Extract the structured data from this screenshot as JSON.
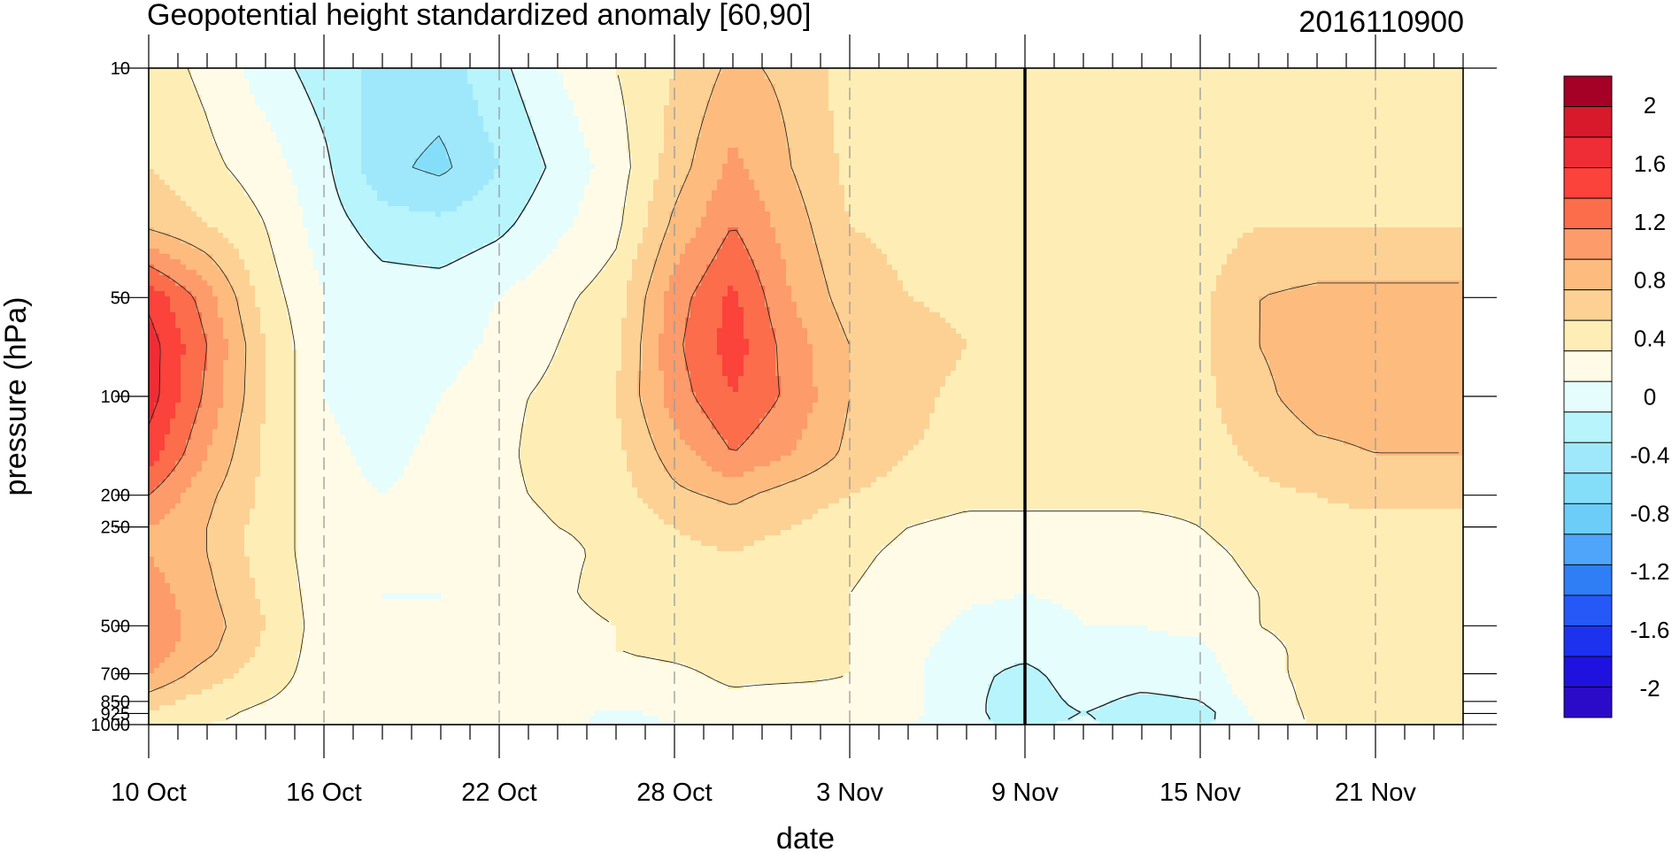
{
  "chart_data": {
    "type": "heatmap",
    "title": "Geopotential height standardized anomaly [60,90]",
    "right_title": "2016110900",
    "xlabel": "date",
    "ylabel": "pressure (hPa)",
    "y_scale": "log",
    "y_reversed": true,
    "ylim": [
      1000,
      10
    ],
    "x_start": "2016-10-10",
    "x_end": "2016-11-24",
    "x_tick_labels": [
      "10 Oct",
      "16 Oct",
      "22 Oct",
      "28 Oct",
      "3 Nov",
      "9 Nov",
      "15 Nov",
      "21 Nov"
    ],
    "x_tick_dates": [
      "2016-10-10",
      "2016-10-16",
      "2016-10-22",
      "2016-10-28",
      "2016-11-03",
      "2016-11-09",
      "2016-11-15",
      "2016-11-21"
    ],
    "y_tick_labels": [
      "10",
      "50",
      "100",
      "200",
      "250",
      "500",
      "700",
      "850",
      "925",
      "1000"
    ],
    "y_tick_values": [
      10,
      50,
      100,
      200,
      250,
      500,
      700,
      850,
      925,
      1000
    ],
    "highlight_date": "2016-11-09",
    "colorbar": {
      "labels": [
        "2",
        "1.6",
        "1.2",
        "0.8",
        "0.4",
        "0",
        "-0.4",
        "-0.8",
        "-1.2",
        "-1.6",
        "-2"
      ],
      "label_values": [
        2,
        1.6,
        1.2,
        0.8,
        0.4,
        0,
        -0.4,
        -0.8,
        -1.2,
        -1.6,
        -2
      ],
      "levels": [
        2.2,
        2.0,
        1.8,
        1.6,
        1.4,
        1.2,
        1.0,
        0.8,
        0.6,
        0.4,
        0.2,
        0,
        -0.2,
        -0.4,
        -0.6,
        -0.8,
        -1.0,
        -1.2,
        -1.4,
        -1.6,
        -1.8,
        -2.0,
        -2.2
      ],
      "colors": [
        "#a50026",
        "#d7192b",
        "#ee2d36",
        "#fb423b",
        "#fb6d4b",
        "#fd9b6b",
        "#fdbb7e",
        "#fdd194",
        "#feeeb5",
        "#fffbe6",
        "#e6fdfe",
        "#b7f4fc",
        "#9fe8fb",
        "#85def9",
        "#6bcdf8",
        "#4ea5fa",
        "#2f7ef6",
        "#2558f7",
        "#1d32ef",
        "#1f12de",
        "#2c0bc8"
      ]
    },
    "dates": [
      "2016-10-10",
      "2016-10-12",
      "2016-10-14",
      "2016-10-16",
      "2016-10-18",
      "2016-10-20",
      "2016-10-22",
      "2016-10-24",
      "2016-10-26",
      "2016-10-28",
      "2016-10-30",
      "2016-11-01",
      "2016-11-03",
      "2016-11-05",
      "2016-11-07",
      "2016-11-09",
      "2016-11-11",
      "2016-11-13",
      "2016-11-15",
      "2016-11-17",
      "2016-11-19",
      "2016-11-21",
      "2016-11-23"
    ],
    "pressure_levels": [
      10,
      20,
      30,
      50,
      70,
      100,
      150,
      200,
      250,
      300,
      400,
      500,
      600,
      700,
      850,
      925,
      1000
    ],
    "values": [
      [
        0.5,
        0.35,
        0.1,
        -0.1,
        -0.25,
        -0.3,
        -0.05,
        0.2,
        0.4,
        0.6,
        0.85,
        0.75,
        0.5,
        0.5,
        0.5,
        0.5,
        0.5,
        0.5,
        0.5,
        0.5,
        0.5,
        0.5,
        0.5
      ],
      [
        0.6,
        0.45,
        0.3,
        0.05,
        -0.35,
        -0.45,
        -0.2,
        0.05,
        0.3,
        0.7,
        1.05,
        0.8,
        0.55,
        0.5,
        0.45,
        0.45,
        0.4,
        0.4,
        0.45,
        0.5,
        0.5,
        0.5,
        0.5
      ],
      [
        0.75,
        0.6,
        0.4,
        0.1,
        -0.1,
        -0.15,
        -0.05,
        0.15,
        0.35,
        0.85,
        1.2,
        0.9,
        0.6,
        0.55,
        0.5,
        0.45,
        0.45,
        0.45,
        0.5,
        0.6,
        0.6,
        0.6,
        0.6
      ],
      [
        1.55,
        1.1,
        0.5,
        0.2,
        0.1,
        0.1,
        0.2,
        0.35,
        0.5,
        1.1,
        1.45,
        1.0,
        0.7,
        0.6,
        0.55,
        0.5,
        0.55,
        0.55,
        0.55,
        0.8,
        0.85,
        0.85,
        0.85
      ],
      [
        1.7,
        1.2,
        0.6,
        0.2,
        0.15,
        0.1,
        0.25,
        0.4,
        0.55,
        1.15,
        1.5,
        1.1,
        0.8,
        0.7,
        0.6,
        0.55,
        0.6,
        0.55,
        0.55,
        0.8,
        0.9,
        0.9,
        0.9
      ],
      [
        1.7,
        1.15,
        0.6,
        0.2,
        0.1,
        0.2,
        0.35,
        0.45,
        0.6,
        1.1,
        1.4,
        1.15,
        0.8,
        0.65,
        0.55,
        0.55,
        0.5,
        0.55,
        0.55,
        0.75,
        0.9,
        0.9,
        0.9
      ],
      [
        1.5,
        1.0,
        0.55,
        0.25,
        0.15,
        0.25,
        0.35,
        0.5,
        0.55,
        0.9,
        1.2,
        1.0,
        0.75,
        0.6,
        0.55,
        0.5,
        0.5,
        0.45,
        0.5,
        0.65,
        0.75,
        0.8,
        0.8
      ],
      [
        1.2,
        0.85,
        0.55,
        0.25,
        0.2,
        0.25,
        0.35,
        0.45,
        0.5,
        0.75,
        0.85,
        0.7,
        0.6,
        0.5,
        0.45,
        0.45,
        0.45,
        0.45,
        0.45,
        0.55,
        0.6,
        0.65,
        0.65
      ],
      [
        1.0,
        0.8,
        0.5,
        0.3,
        0.2,
        0.25,
        0.3,
        0.4,
        0.45,
        0.6,
        0.7,
        0.6,
        0.5,
        0.4,
        0.35,
        0.35,
        0.35,
        0.35,
        0.4,
        0.5,
        0.55,
        0.55,
        0.55
      ],
      [
        1.0,
        0.8,
        0.5,
        0.3,
        0.2,
        0.2,
        0.3,
        0.35,
        0.45,
        0.55,
        0.6,
        0.5,
        0.45,
        0.35,
        0.3,
        0.25,
        0.3,
        0.3,
        0.35,
        0.45,
        0.5,
        0.5,
        0.5
      ],
      [
        1.1,
        0.85,
        0.55,
        0.3,
        0.2,
        0.2,
        0.25,
        0.35,
        0.5,
        0.55,
        0.6,
        0.5,
        0.4,
        0.3,
        0.25,
        0.2,
        0.25,
        0.25,
        0.3,
        0.4,
        0.45,
        0.45,
        0.45
      ],
      [
        1.15,
        0.9,
        0.6,
        0.3,
        0.2,
        0.2,
        0.25,
        0.3,
        0.4,
        0.5,
        0.55,
        0.45,
        0.4,
        0.3,
        0.15,
        0.05,
        0.2,
        0.2,
        0.25,
        0.4,
        0.45,
        0.45,
        0.45
      ],
      [
        1.1,
        0.85,
        0.55,
        0.3,
        0.2,
        0.2,
        0.25,
        0.3,
        0.4,
        0.45,
        0.5,
        0.45,
        0.4,
        0.25,
        0.1,
        0.05,
        0.15,
        0.15,
        0.15,
        0.35,
        0.45,
        0.45,
        0.45
      ],
      [
        1.0,
        0.7,
        0.5,
        0.3,
        0.2,
        0.2,
        0.25,
        0.3,
        0.3,
        0.35,
        0.45,
        0.45,
        0.4,
        0.25,
        0.05,
        -0.05,
        0.1,
        0.1,
        0.1,
        0.35,
        0.45,
        0.45,
        0.45
      ],
      [
        0.7,
        0.5,
        0.4,
        0.3,
        0.25,
        0.2,
        0.25,
        0.3,
        0.25,
        0.3,
        0.35,
        0.3,
        0.35,
        0.25,
        0.05,
        -0.1,
        0.05,
        -0.05,
        0.0,
        0.3,
        0.45,
        0.45,
        0.45
      ],
      [
        0.55,
        0.45,
        0.35,
        0.3,
        0.25,
        0.2,
        0.25,
        0.3,
        0.15,
        0.25,
        0.25,
        0.3,
        0.35,
        0.25,
        0.05,
        -0.1,
        0.0,
        -0.1,
        -0.1,
        0.25,
        0.45,
        0.45,
        0.45
      ],
      [
        0.5,
        0.4,
        0.35,
        0.3,
        0.25,
        0.2,
        0.25,
        0.3,
        0.1,
        0.2,
        0.2,
        0.25,
        0.3,
        0.2,
        0.05,
        -0.05,
        0.05,
        -0.1,
        -0.05,
        0.2,
        0.45,
        0.45,
        0.45
      ]
    ]
  }
}
